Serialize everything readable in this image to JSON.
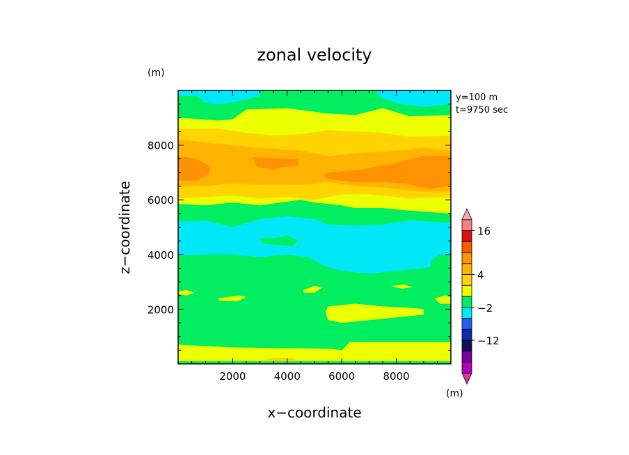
{
  "chart_data": {
    "type": "heatmap",
    "title": "zonal velocity",
    "xlabel": "x−coordinate",
    "ylabel": "z−coordinate",
    "y_unit": "(m)",
    "colorbar_unit": "(m)",
    "annotations": [
      "y=100 m",
      "t=9750 sec"
    ],
    "xlim": [
      0,
      10000
    ],
    "ylim": [
      0,
      10000
    ],
    "x_ticks": [
      2000,
      4000,
      6000,
      8000
    ],
    "y_ticks": [
      2000,
      4000,
      6000,
      8000
    ],
    "x_tick_labels": [
      "2000",
      "4000",
      "6000",
      "8000"
    ],
    "y_tick_labels": [
      "2000",
      "4000",
      "6000",
      "8000"
    ],
    "colorbar": {
      "levels": [
        {
          "color": "#e0309a",
          "tip": "bottom"
        },
        {
          "color": "#b000c0"
        },
        {
          "color": "#7a009a"
        },
        {
          "color": "#101060"
        },
        {
          "color": "#0a2ab0"
        },
        {
          "color": "#1f5ef0"
        },
        {
          "color": "#00e8f8"
        },
        {
          "color": "#00ee60"
        },
        {
          "color": "#ecff00"
        },
        {
          "color": "#ffd400"
        },
        {
          "color": "#ffb400"
        },
        {
          "color": "#ff9200"
        },
        {
          "color": "#f06000"
        },
        {
          "color": "#e01010"
        },
        {
          "color": "#f88080"
        },
        {
          "color": "#f4a8a8",
          "tip": "top"
        }
      ],
      "labels": [
        {
          "text": "16",
          "after_level": 13
        },
        {
          "text": "4",
          "after_level": 9
        },
        {
          "text": "−2",
          "after_level": 6
        },
        {
          "text": "−12",
          "after_level": 3
        }
      ]
    },
    "bands": [
      {
        "color": "#00ee60",
        "z": [
          [
            0,
            10000
          ],
          [
            10000,
            10000
          ],
          [
            10000,
            0
          ],
          [
            0,
            0
          ]
        ]
      },
      {
        "color": "#00e8f8",
        "z": [
          [
            0,
            9800
          ],
          [
            700,
            9800
          ],
          [
            1000,
            9550
          ],
          [
            1500,
            9500
          ],
          [
            2200,
            9600
          ],
          [
            3000,
            9800
          ],
          [
            3000,
            10000
          ],
          [
            0,
            10000
          ]
        ]
      },
      {
        "color": "#00e8f8",
        "z": [
          [
            7200,
            10000
          ],
          [
            7500,
            9700
          ],
          [
            8200,
            9500
          ],
          [
            9000,
            9400
          ],
          [
            10000,
            9500
          ],
          [
            10000,
            10000
          ]
        ]
      },
      {
        "color": "#ecff00",
        "z": [
          [
            0,
            9000
          ],
          [
            1500,
            8900
          ],
          [
            2000,
            8950
          ],
          [
            2500,
            9300
          ],
          [
            4000,
            9350
          ],
          [
            5500,
            9150
          ],
          [
            6500,
            9100
          ],
          [
            7500,
            9350
          ],
          [
            8500,
            9050
          ],
          [
            10000,
            9100
          ],
          [
            10000,
            5500
          ],
          [
            8500,
            5600
          ],
          [
            7500,
            5700
          ],
          [
            6500,
            5700
          ],
          [
            6000,
            5800
          ],
          [
            5000,
            5900
          ],
          [
            4500,
            6000
          ],
          [
            3000,
            5800
          ],
          [
            2000,
            5900
          ],
          [
            1000,
            5800
          ],
          [
            0,
            5850
          ]
        ]
      },
      {
        "color": "#ffd400",
        "z": [
          [
            0,
            8600
          ],
          [
            1500,
            8600
          ],
          [
            2500,
            8450
          ],
          [
            3500,
            8350
          ],
          [
            4500,
            8400
          ],
          [
            5500,
            8550
          ],
          [
            6500,
            8500
          ],
          [
            7500,
            8450
          ],
          [
            8500,
            8300
          ],
          [
            10000,
            8350
          ],
          [
            10000,
            6100
          ],
          [
            8500,
            6050
          ],
          [
            7000,
            6200
          ],
          [
            6000,
            6200
          ],
          [
            5000,
            6000
          ],
          [
            4000,
            6100
          ],
          [
            3000,
            6050
          ],
          [
            2000,
            6150
          ],
          [
            1000,
            6100
          ],
          [
            0,
            6050
          ]
        ]
      },
      {
        "color": "#ffb400",
        "z": [
          [
            0,
            8200
          ],
          [
            2000,
            8000
          ],
          [
            3000,
            7900
          ],
          [
            4500,
            7800
          ],
          [
            5500,
            7600
          ],
          [
            6500,
            7700
          ],
          [
            8000,
            7800
          ],
          [
            9000,
            7900
          ],
          [
            10000,
            7800
          ],
          [
            10000,
            6300
          ],
          [
            9000,
            6300
          ],
          [
            7500,
            6450
          ],
          [
            6500,
            6500
          ],
          [
            5500,
            6650
          ],
          [
            4500,
            6550
          ],
          [
            3000,
            6550
          ],
          [
            2000,
            6600
          ],
          [
            1000,
            6500
          ],
          [
            0,
            6500
          ]
        ]
      },
      {
        "color": "#ff9200",
        "z": [
          [
            0,
            7600
          ],
          [
            700,
            7500
          ],
          [
            1200,
            7200
          ],
          [
            1100,
            6900
          ],
          [
            700,
            6700
          ],
          [
            0,
            6700
          ]
        ]
      },
      {
        "color": "#ff9200",
        "z": [
          [
            2700,
            7550
          ],
          [
            4400,
            7500
          ],
          [
            4400,
            7250
          ],
          [
            3900,
            7200
          ],
          [
            3500,
            7100
          ],
          [
            2900,
            7200
          ]
        ]
      },
      {
        "color": "#ff9200",
        "z": [
          [
            5500,
            7000
          ],
          [
            6700,
            7100
          ],
          [
            8000,
            7350
          ],
          [
            9000,
            7600
          ],
          [
            10000,
            7600
          ],
          [
            10000,
            6500
          ],
          [
            9200,
            6400
          ],
          [
            8300,
            6600
          ],
          [
            7500,
            6650
          ],
          [
            6500,
            6650
          ],
          [
            5500,
            6750
          ],
          [
            5300,
            6900
          ]
        ]
      },
      {
        "color": "#00e8f8",
        "z": [
          [
            0,
            5200
          ],
          [
            1000,
            5250
          ],
          [
            2000,
            5000
          ],
          [
            3000,
            5300
          ],
          [
            4000,
            5400
          ],
          [
            5000,
            5300
          ],
          [
            5500,
            5100
          ],
          [
            6500,
            5050
          ],
          [
            7500,
            5100
          ],
          [
            8500,
            5250
          ],
          [
            10000,
            5150
          ],
          [
            10000,
            3700
          ],
          [
            9000,
            3500
          ],
          [
            8000,
            3400
          ],
          [
            7000,
            3300
          ],
          [
            6000,
            3400
          ],
          [
            5300,
            3600
          ],
          [
            4800,
            3900
          ],
          [
            4000,
            4000
          ],
          [
            3000,
            3900
          ],
          [
            2000,
            4000
          ],
          [
            1000,
            4000
          ],
          [
            0,
            3950
          ]
        ]
      },
      {
        "color": "#00ee60",
        "z": [
          [
            9200,
            3400
          ],
          [
            10000,
            3350
          ],
          [
            10000,
            3950
          ],
          [
            9600,
            4000
          ],
          [
            9300,
            3800
          ]
        ]
      },
      {
        "color": "#00ee60",
        "z": [
          [
            3000,
            4600
          ],
          [
            3600,
            4600
          ],
          [
            4000,
            4700
          ],
          [
            4400,
            4500
          ],
          [
            4200,
            4300
          ],
          [
            3600,
            4350
          ],
          [
            3100,
            4400
          ]
        ]
      },
      {
        "color": "#ecff00",
        "z": [
          [
            0,
            2650
          ],
          [
            300,
            2700
          ],
          [
            600,
            2600
          ],
          [
            300,
            2500
          ],
          [
            0,
            2550
          ]
        ]
      },
      {
        "color": "#ecff00",
        "z": [
          [
            1500,
            2400
          ],
          [
            2200,
            2500
          ],
          [
            2500,
            2450
          ],
          [
            2200,
            2300
          ],
          [
            1500,
            2300
          ]
        ]
      },
      {
        "color": "#ecff00",
        "z": [
          [
            4600,
            2700
          ],
          [
            5000,
            2850
          ],
          [
            5300,
            2800
          ],
          [
            5000,
            2600
          ],
          [
            4600,
            2600
          ]
        ]
      },
      {
        "color": "#ecff00",
        "z": [
          [
            5500,
            2100
          ],
          [
            6500,
            2200
          ],
          [
            7500,
            2100
          ],
          [
            8500,
            2050
          ],
          [
            9000,
            2000
          ],
          [
            9000,
            1800
          ],
          [
            8000,
            1700
          ],
          [
            7000,
            1600
          ],
          [
            6000,
            1500
          ],
          [
            5500,
            1600
          ],
          [
            5400,
            1900
          ]
        ]
      },
      {
        "color": "#ecff00",
        "z": [
          [
            7800,
            2850
          ],
          [
            8300,
            2900
          ],
          [
            8600,
            2800
          ],
          [
            8200,
            2750
          ]
        ]
      },
      {
        "color": "#ecff00",
        "z": [
          [
            9400,
            2400
          ],
          [
            9800,
            2500
          ],
          [
            10000,
            2450
          ],
          [
            10000,
            2200
          ],
          [
            9600,
            2200
          ]
        ]
      },
      {
        "color": "#ecff00",
        "z": [
          [
            0,
            100
          ],
          [
            10000,
            100
          ],
          [
            10000,
            800
          ],
          [
            6300,
            800
          ],
          [
            6000,
            500
          ],
          [
            5600,
            550
          ],
          [
            2000,
            600
          ],
          [
            0,
            700
          ]
        ]
      },
      {
        "color": "#ffd400",
        "z": [
          [
            3000,
            100
          ],
          [
            4500,
            100
          ],
          [
            4200,
            200
          ],
          [
            3500,
            230
          ]
        ]
      }
    ]
  }
}
